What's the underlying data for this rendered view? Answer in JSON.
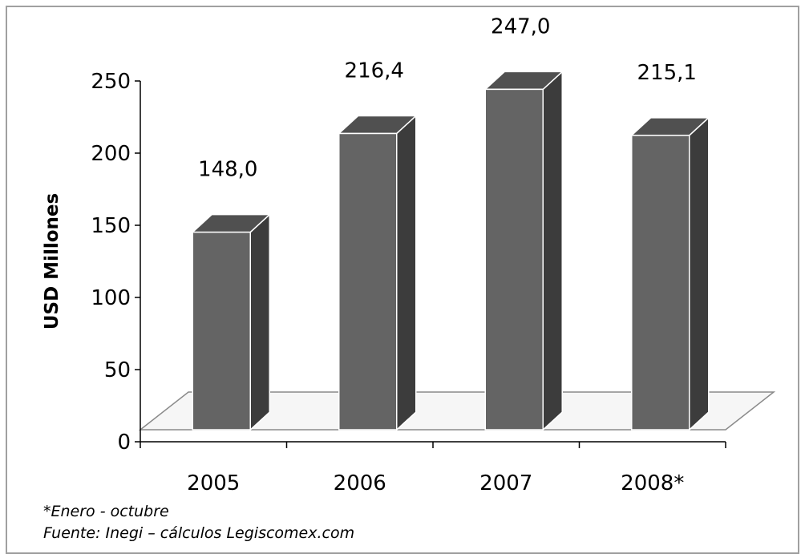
{
  "chart_data": {
    "type": "bar",
    "style": "3d-column",
    "categories": [
      "2005",
      "2006",
      "2007",
      "2008*"
    ],
    "values": [
      148.0,
      216.4,
      247.0,
      215.1
    ],
    "value_labels": [
      "148,0",
      "216,4",
      "247,0",
      "215,1"
    ],
    "ylabel": "USD Millones",
    "xlabel": "",
    "ylim": [
      0,
      250
    ],
    "yticks": [
      "0",
      "50",
      "100",
      "150",
      "200",
      "250"
    ],
    "ytick_values": [
      0,
      50,
      100,
      150,
      200,
      250
    ],
    "grid": false,
    "legend": "none",
    "colors": {
      "bar_front": "#646464",
      "bar_side": "#3c3c3c",
      "bar_top": "#505050",
      "bar_edge": "#ffffff",
      "floor": "#f6f6f6",
      "axis": "#000000",
      "frame": "#a0a0a0"
    }
  },
  "footnotes": {
    "period": "*Enero - octubre",
    "source": "Fuente: Inegi – cálculos Legiscomex.com"
  }
}
